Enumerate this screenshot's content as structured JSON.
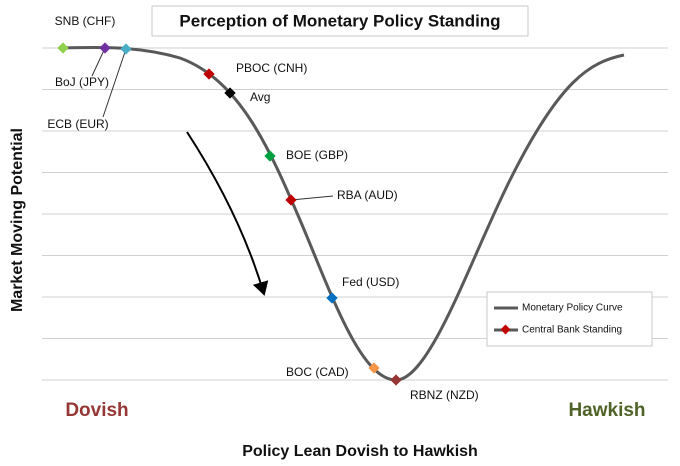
{
  "title": "Perception of Monetary Policy Standing",
  "y_axis_label": "Market Moving Potential",
  "x_axis_label": "Policy Lean Dovish to Hawkish",
  "left_label": {
    "text": "Dovish",
    "color": "#953735"
  },
  "right_label": {
    "text": "Hawkish",
    "color": "#4f6228"
  },
  "curve_color": "#595959",
  "legend": [
    "Monetary Policy Curve",
    "Central Bank Standing"
  ],
  "banks": [
    {
      "label": "SNB (CHF)",
      "color": "#92d050"
    },
    {
      "label": "BoJ (JPY)",
      "color": "#7030a0"
    },
    {
      "label": "ECB (EUR)",
      "color": "#4bacc6"
    },
    {
      "label": "PBOC (CNH)",
      "color": "#c00000"
    },
    {
      "label": "Avg",
      "color": "#000000"
    },
    {
      "label": "BOE (GBP)",
      "color": "#00a040"
    },
    {
      "label": "RBA (AUD)",
      "color": "#c00000"
    },
    {
      "label": "Fed (USD)",
      "color": "#0070c0"
    },
    {
      "label": "BOC (CAD)",
      "color": "#f79646"
    },
    {
      "label": "RBNZ (NZD)",
      "color": "#953735"
    }
  ]
}
